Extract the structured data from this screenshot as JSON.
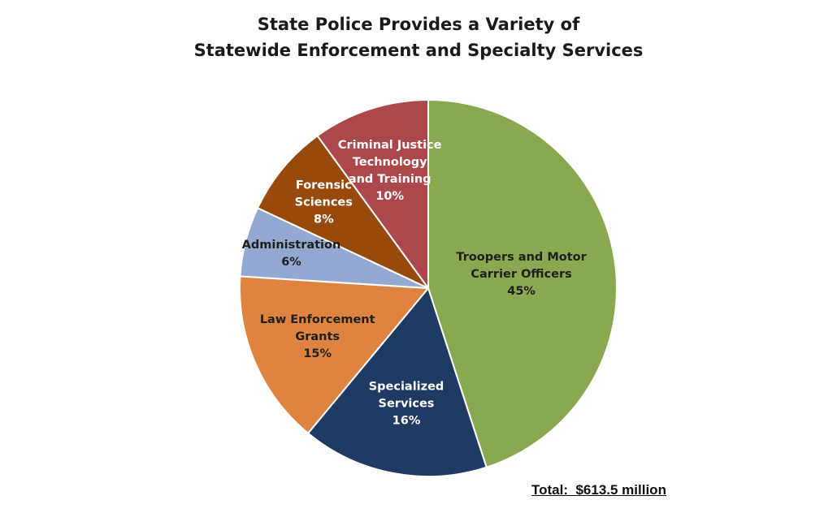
{
  "chart_data": {
    "type": "pie",
    "title_lines": [
      "State Police Provides a Variety of",
      "Statewide Enforcement and Specialty Services"
    ],
    "slices": [
      {
        "label_lines": [
          "Troopers and Motor",
          "Carrier Officers"
        ],
        "value": 45,
        "value_label": "45%",
        "color": "#8aa84f",
        "text_color": "#1f1f1f"
      },
      {
        "label_lines": [
          "Specialized",
          "Services"
        ],
        "value": 16,
        "value_label": "16%",
        "color": "#1f3a63",
        "text_color": "#ffffff"
      },
      {
        "label_lines": [
          "Law Enforcement",
          "Grants"
        ],
        "value": 15,
        "value_label": "15%",
        "color": "#df8440",
        "text_color": "#1f1f1f"
      },
      {
        "label_lines": [
          "Administration"
        ],
        "value": 6,
        "value_label": "6%",
        "color": "#94a9d1",
        "text_color": "#1f1f1f"
      },
      {
        "label_lines": [
          "Forensic",
          "Sciences"
        ],
        "value": 8,
        "value_label": "8%",
        "color": "#984a0c",
        "text_color": "#ffffff"
      },
      {
        "label_lines": [
          "Criminal Justice",
          "Technology",
          "and Training"
        ],
        "value": 10,
        "value_label": "10%",
        "color": "#ac474c",
        "text_color": "#ffffff"
      }
    ],
    "start_angle_deg": 0,
    "direction": "clockwise",
    "total_note": "Total:  $613.5 million"
  }
}
